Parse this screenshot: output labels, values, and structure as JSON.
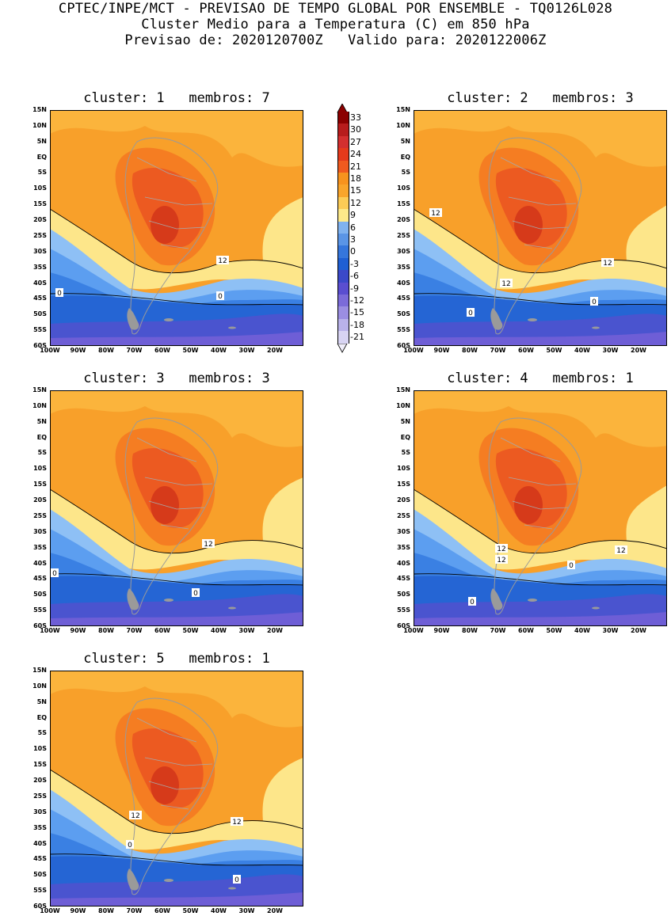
{
  "header": {
    "line1": "CPTEC/INPE/MCT - PREVISAO DE TEMPO GLOBAL POR ENSEMBLE - TQ0126L028",
    "line2": "Cluster Medio para a Temperatura (C) em 850 hPa",
    "line3": "Previsao de: 2020120700Z   Valido para: 2020122006Z"
  },
  "axes": {
    "lat_ticks": [
      "15N",
      "10N",
      "5N",
      "EQ",
      "5S",
      "10S",
      "15S",
      "20S",
      "25S",
      "30S",
      "35S",
      "40S",
      "45S",
      "50S",
      "55S",
      "60S"
    ],
    "lon_ticks": [
      "100W",
      "90W",
      "80W",
      "70W",
      "60W",
      "50W",
      "40W",
      "30W",
      "20W"
    ]
  },
  "colorbar": {
    "labels": [
      "33",
      "30",
      "27",
      "24",
      "21",
      "18",
      "15",
      "12",
      "9",
      "6",
      "3",
      "0",
      "-3",
      "-6",
      "-9",
      "-12",
      "-15",
      "-18",
      "-21"
    ],
    "colors": [
      "#8b0000",
      "#b71c1c",
      "#d32f2f",
      "#e53a1c",
      "#f05a1f",
      "#f7931e",
      "#f9a52b",
      "#fccc56",
      "#fde98a",
      "#7fb2ef",
      "#5a95e6",
      "#3576dc",
      "#1f5fd3",
      "#3b49c9",
      "#5a4ed0",
      "#7b6bd9",
      "#9b8ee2",
      "#b9b2ea",
      "#d8d4f3"
    ]
  },
  "panels": [
    {
      "title": "cluster: 1   membros: 7",
      "labels": [
        "12",
        "0",
        "0"
      ]
    },
    {
      "title": "cluster: 2   membros: 3",
      "labels": [
        "12",
        "12",
        "12",
        "0",
        "0"
      ]
    },
    {
      "title": "cluster: 3   membros: 3",
      "labels": [
        "12",
        "0",
        "0"
      ]
    },
    {
      "title": "cluster: 4   membros: 1",
      "labels": [
        "12",
        "12",
        "12",
        "0",
        "0"
      ]
    },
    {
      "title": "cluster: 5   membros: 1",
      "labels": [
        "12",
        "12",
        "0",
        "0"
      ]
    }
  ]
}
